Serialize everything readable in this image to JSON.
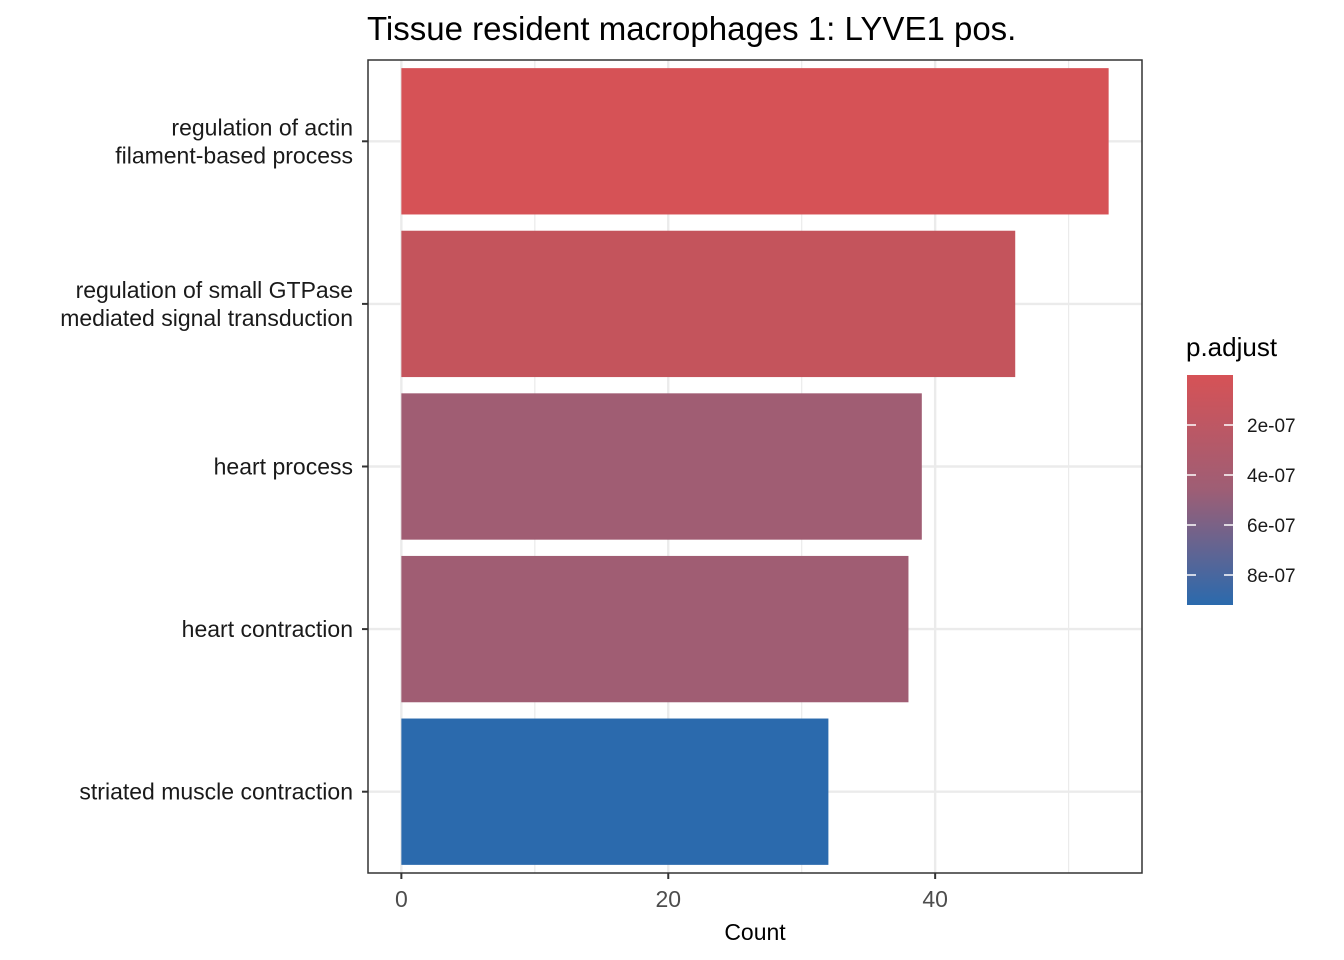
{
  "chart_data": {
    "type": "bar",
    "orientation": "horizontal",
    "title": "Tissue resident macrophages 1: LYVE1 pos.",
    "xlabel": "Count",
    "ylabel": "",
    "xlim": [
      -2.5,
      55.5
    ],
    "xticks": [
      0,
      20,
      40
    ],
    "xtick_labels": [
      "0",
      "20",
      "40"
    ],
    "x_minor_breaks": [
      10,
      30,
      50
    ],
    "grid": true,
    "categories": [
      {
        "lines": [
          "regulation of actin",
          "filament-based process"
        ]
      },
      {
        "lines": [
          "regulation of small GTPase",
          "mediated signal transduction"
        ]
      },
      {
        "lines": [
          "heart process"
        ]
      },
      {
        "lines": [
          "heart contraction"
        ]
      },
      {
        "lines": [
          "striated muscle contraction"
        ]
      }
    ],
    "values": [
      53,
      46,
      39,
      38,
      32
    ],
    "p_adjust": [
      3e-09,
      8e-08,
      3.3e-07,
      3.3e-07,
      8.6e-07
    ],
    "bar_colors": [
      "#D65256",
      "#C4545C",
      "#A05D73",
      "#A05D73",
      "#2B6AAD"
    ],
    "legend": {
      "title": "p.adjust",
      "position": "right",
      "range": [
        0.0,
        9.2e-07
      ],
      "color_low_value": "#D65256",
      "color_mid_value": "#9E5E75",
      "color_high_value": "#2B6AAD",
      "ticks": [
        2e-07,
        4e-07,
        6e-07,
        8e-07
      ],
      "tick_labels": [
        "2e-07",
        "4e-07",
        "6e-07",
        "8e-07"
      ]
    }
  }
}
